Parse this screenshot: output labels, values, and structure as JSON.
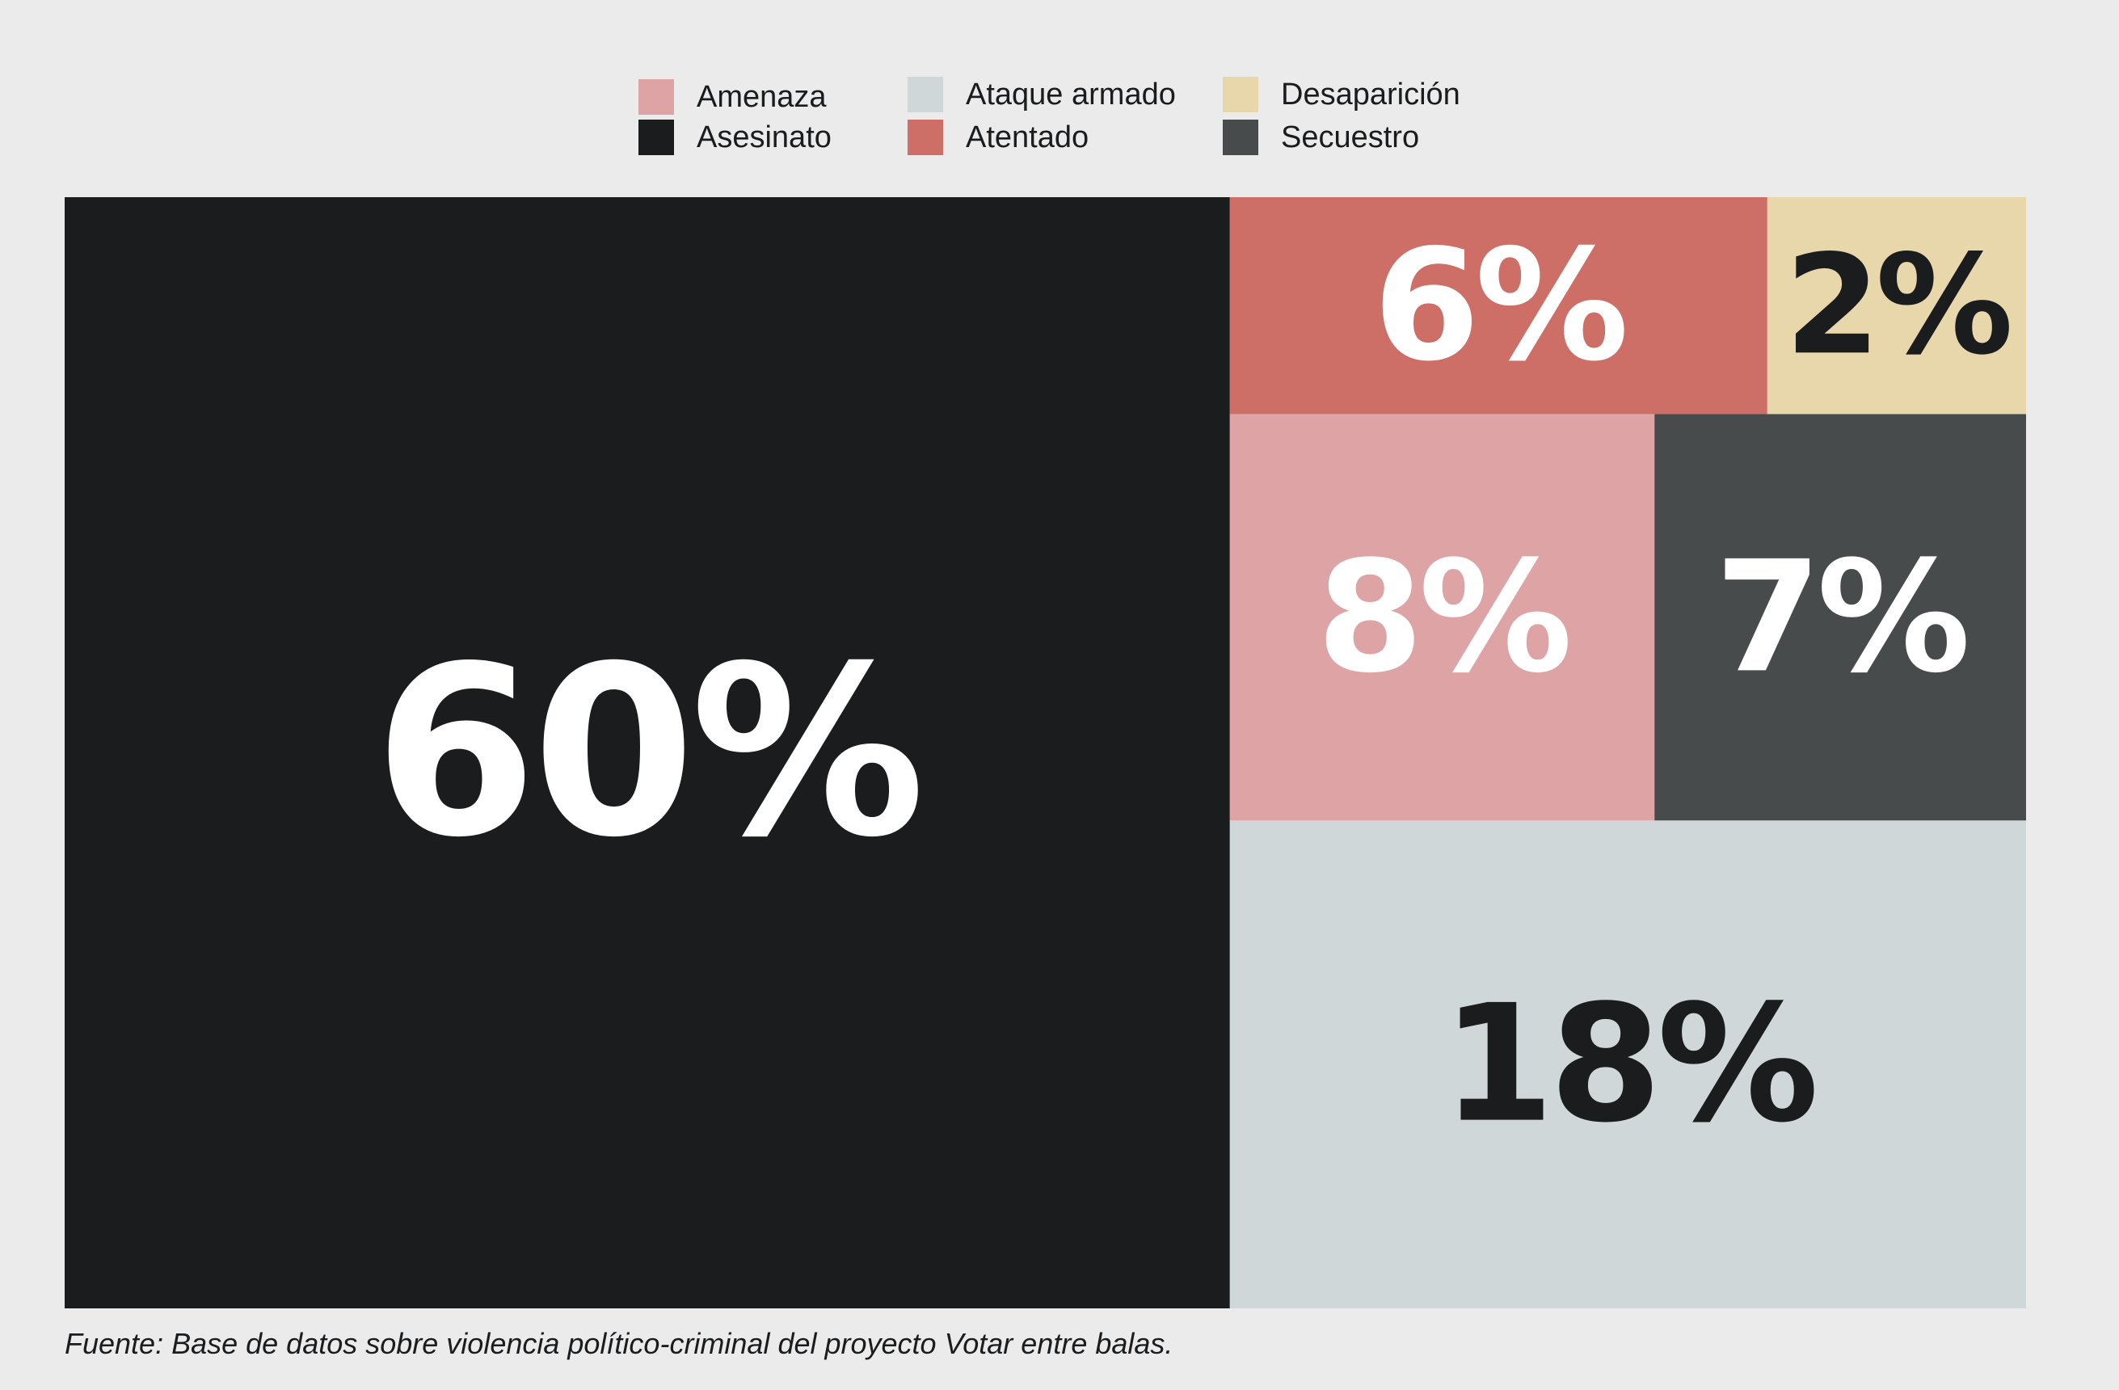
{
  "chart_data": {
    "type": "treemap",
    "title": "",
    "categories": [
      "Asesinato",
      "Ataque armado",
      "Amenaza",
      "Secuestro",
      "Atentado",
      "Desaparición"
    ],
    "values": [
      60,
      18,
      8,
      7,
      6,
      2
    ],
    "value_labels": [
      "60%",
      "18%",
      "8%",
      "7%",
      "6%",
      "2%"
    ],
    "colors": [
      "#1b1c1e",
      "#cfd7d8",
      "#dea4a5",
      "#484b4c",
      "#cd6e67",
      "#e8d7aa"
    ],
    "label_colors": [
      "#ffffff",
      "#1b1c1e",
      "#ffffff",
      "#ffffff",
      "#ffffff",
      "#1b1c1e"
    ],
    "legend": {
      "placement": "top-center",
      "items": [
        {
          "label": "Amenaza",
          "color": "#dea4a5"
        },
        {
          "label": "Asesinato",
          "color": "#1b1c1e"
        },
        {
          "label": "Ataque armado",
          "color": "#cfd7d8"
        },
        {
          "label": "Atentado",
          "color": "#cd6e67"
        },
        {
          "label": "Desaparición",
          "color": "#e8d7aa"
        },
        {
          "label": "Secuestro",
          "color": "#484b4c"
        }
      ]
    }
  },
  "source": "Fuente: Base de datos sobre violencia político-criminal del proyecto Votar entre balas."
}
